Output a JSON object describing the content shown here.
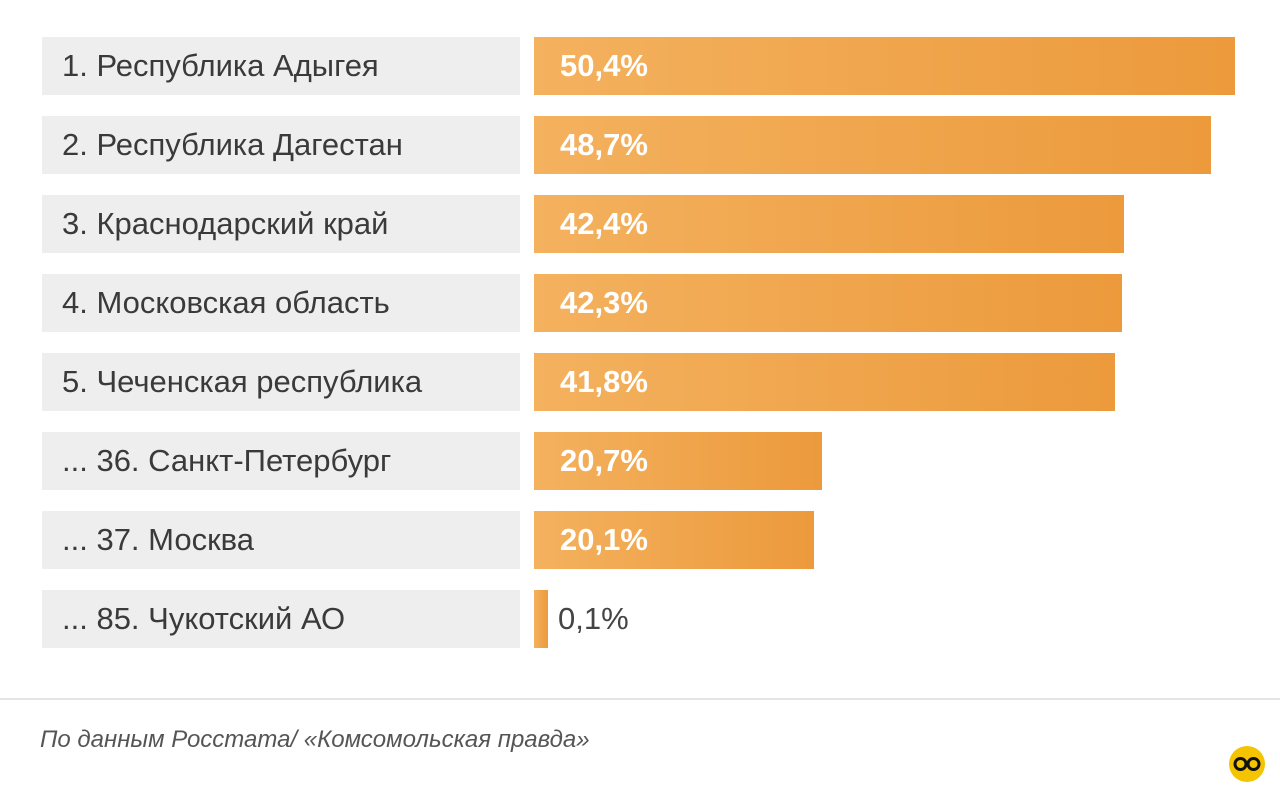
{
  "chart_data": {
    "type": "bar",
    "orientation": "horizontal",
    "categories": [
      "1. Республика Адыгея",
      "2. Республика Дагестан",
      "3. Краснодарский край",
      "4. Московская область",
      "5. Чеченская республика",
      "... 36. Санкт-Петербург",
      "... 37. Москва",
      "... 85. Чукотский АО"
    ],
    "values": [
      50.4,
      48.7,
      42.4,
      42.3,
      41.8,
      20.7,
      20.1,
      0.1
    ],
    "value_labels": [
      "50,4%",
      "48,7%",
      "42,4%",
      "42,3%",
      "41,8%",
      "20,7%",
      "20,1%",
      "0,1%"
    ],
    "xlim": [
      0,
      50.4
    ],
    "grid": false,
    "bar_color_start": "#f4b15e",
    "bar_color_end": "#ec9a3c",
    "label_bg_color": "#eeeeef",
    "value_color_inside": "#ffffff",
    "value_color_outside": "#444444"
  },
  "footer": {
    "source": "По данным Росстата/ «Комсомольская правда»",
    "logo_icon": "kp-logo-icon",
    "logo_color": "#f5c400"
  }
}
